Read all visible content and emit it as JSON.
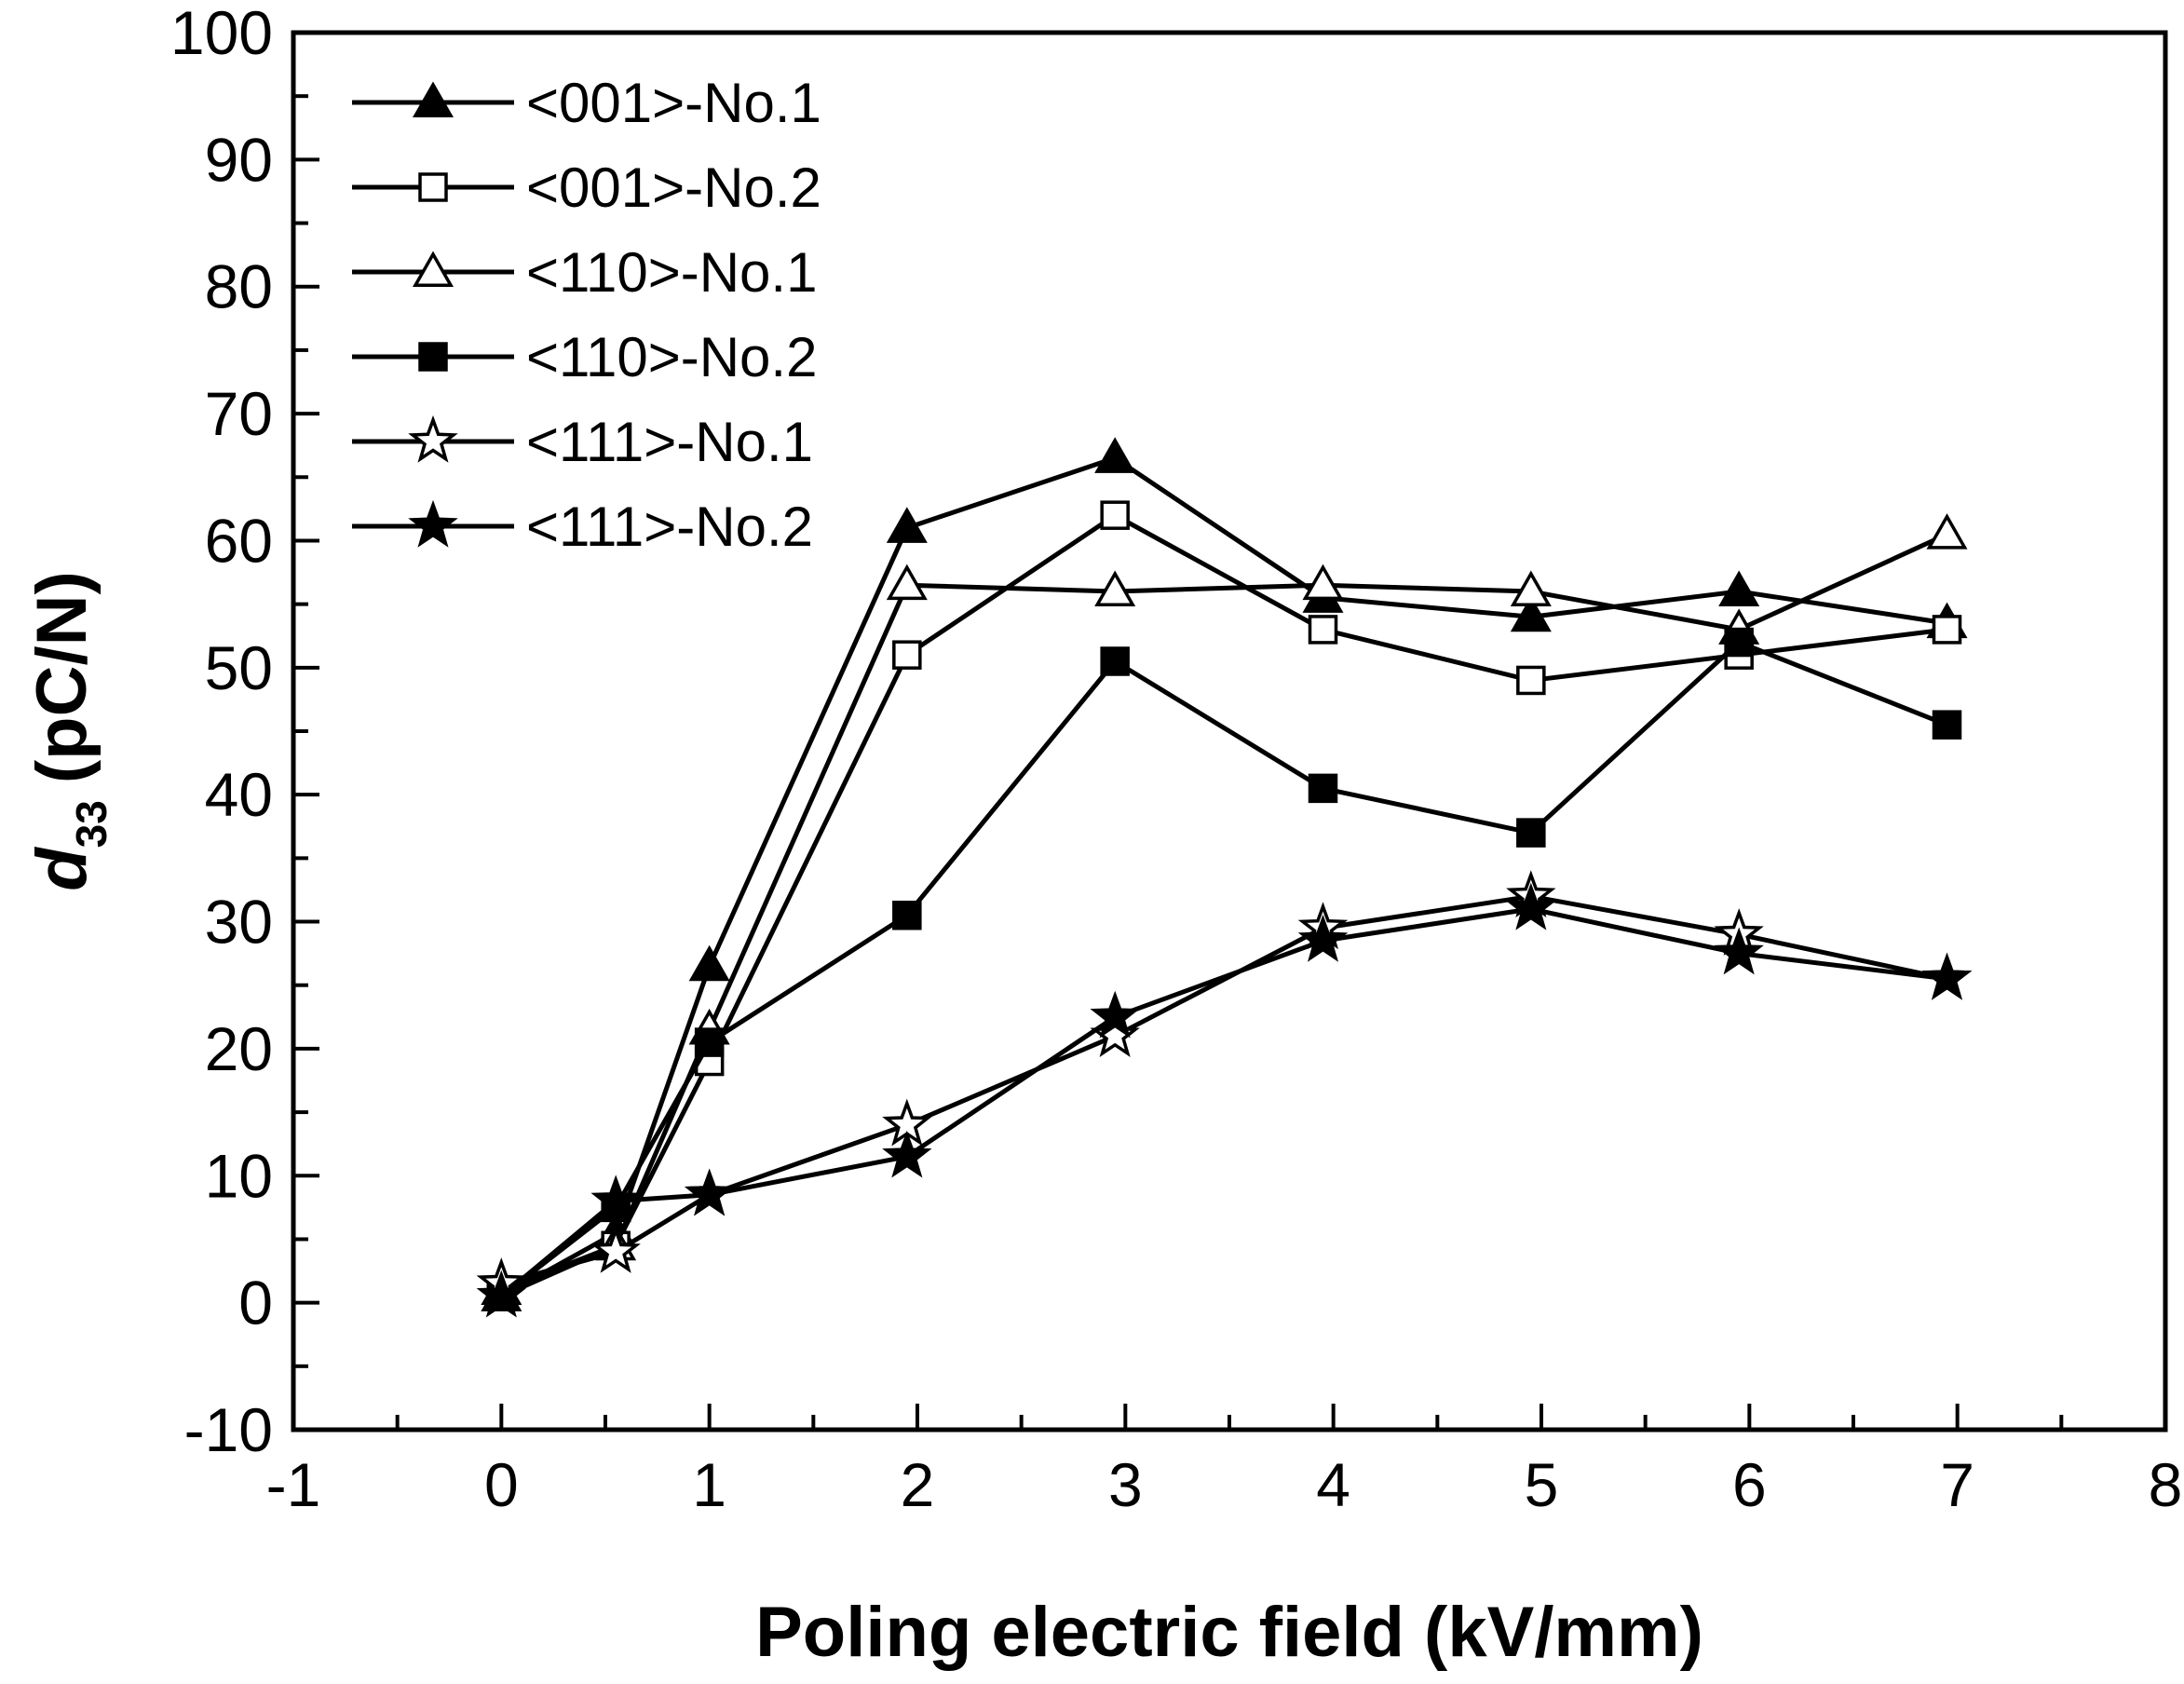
{
  "chart_data": {
    "type": "line",
    "title": "",
    "xlabel": "Poling electric field (kV/mm)",
    "ylabel": "(pC/N)",
    "ylabel_symbol": "d",
    "ylabel_subscript": "33",
    "xlim": [
      -1,
      8
    ],
    "ylim": [
      -10,
      100
    ],
    "xticks": [
      -1,
      0,
      1,
      2,
      3,
      4,
      5,
      6,
      7,
      8
    ],
    "yticks": [
      -10,
      0,
      10,
      20,
      30,
      40,
      50,
      60,
      70,
      80,
      90,
      100
    ],
    "xtick_labels": [
      "-1",
      "0",
      "1",
      "2",
      "3",
      "4",
      "5",
      "6",
      "7",
      "8"
    ],
    "ytick_labels": [
      "-10",
      "0",
      "10",
      "20",
      "30",
      "40",
      "50",
      "60",
      "70",
      "80",
      "90",
      "100"
    ],
    "legend_position": "top-left",
    "grid": false,
    "series": [
      {
        "name": "<001>-No.1",
        "marker": "triangle-filled",
        "x": [
          0,
          0.55,
          1,
          1.95,
          2.95,
          3.95,
          4.95,
          5.95,
          6.95
        ],
        "y": [
          0.5,
          5.5,
          26.5,
          61,
          66.5,
          55.5,
          54,
          56,
          53.5
        ]
      },
      {
        "name": "<001>-No.2",
        "marker": "square-open",
        "x": [
          0,
          0.55,
          1,
          1.95,
          2.95,
          3.95,
          4.95,
          5.95,
          6.95
        ],
        "y": [
          0.5,
          4.5,
          19,
          51,
          62,
          53,
          49,
          51,
          53
        ]
      },
      {
        "name": "<110>-No.1",
        "marker": "triangle-open",
        "x": [
          0,
          0.55,
          1,
          1.95,
          2.95,
          3.95,
          4.95,
          5.95,
          6.95
        ],
        "y": [
          1,
          4.5,
          21.5,
          56.5,
          56,
          56.5,
          56,
          53,
          60.5
        ]
      },
      {
        "name": "<110>-No.2",
        "marker": "square-filled",
        "x": [
          0,
          0.55,
          1,
          1.95,
          2.95,
          3.95,
          4.95,
          5.95,
          6.95
        ],
        "y": [
          0.5,
          7.5,
          20.5,
          30.5,
          50.5,
          40.5,
          37,
          52,
          45.5
        ]
      },
      {
        "name": "<111>-No.1",
        "marker": "star-open",
        "x": [
          0,
          0.55,
          1,
          1.95,
          2.95,
          3.95,
          4.95,
          5.95,
          6.95
        ],
        "y": [
          1.5,
          4,
          8.5,
          14,
          21,
          29.5,
          32,
          29,
          25.5
        ]
      },
      {
        "name": "<111>-No.2",
        "marker": "star-filled",
        "x": [
          0,
          0.55,
          1,
          1.95,
          2.95,
          3.95,
          4.95,
          5.95,
          6.95
        ],
        "y": [
          0.5,
          8,
          8.5,
          11.5,
          22.5,
          28.5,
          31,
          27.5,
          25.5
        ]
      }
    ]
  }
}
